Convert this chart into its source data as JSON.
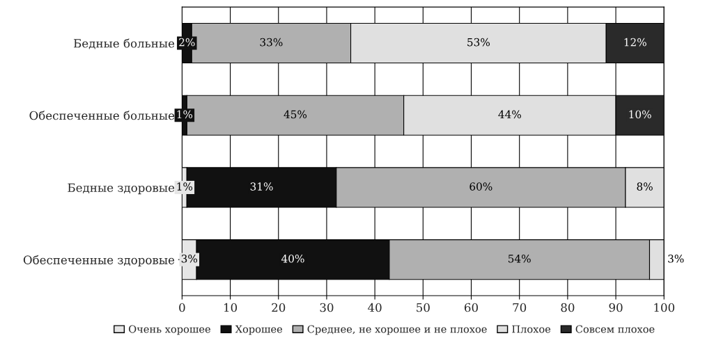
{
  "chart_data": {
    "type": "bar",
    "orientation": "horizontal",
    "stacked": true,
    "categories": [
      "Бедные больные",
      "Обеспеченные больные",
      "Бедные здоровые",
      "Обеспеченные здоровые"
    ],
    "series": [
      {
        "name": "Очень хорошее",
        "color": "#e6e6e6",
        "values": [
          0,
          0,
          1,
          3
        ],
        "value_labels": [
          null,
          null,
          "1%",
          "3%"
        ]
      },
      {
        "name": "Хорошее",
        "color": "#111111",
        "values": [
          2,
          1,
          31,
          40
        ],
        "value_labels": [
          "2%",
          "1%",
          "31%",
          "40%"
        ]
      },
      {
        "name": "Среднее, не хорошее и не плохое",
        "color": "#b0b0b0",
        "values": [
          33,
          45,
          60,
          54
        ],
        "value_labels": [
          "33%",
          "45%",
          "60%",
          "54%"
        ]
      },
      {
        "name": "Плохое",
        "color": "#e0e0e0",
        "values": [
          53,
          44,
          8,
          3
        ],
        "value_labels": [
          "53%",
          "44%",
          "8%",
          "3%"
        ]
      },
      {
        "name": "Совсем плохое",
        "color": "#2a2a2a",
        "values": [
          12,
          10,
          0,
          0
        ],
        "value_labels": [
          "12%",
          "10%",
          null,
          null
        ]
      }
    ],
    "xlim": [
      0,
      100
    ],
    "xticks": [
      0,
      10,
      20,
      30,
      40,
      50,
      60,
      70,
      80,
      90,
      100
    ],
    "grid": "x",
    "legend": "bottom"
  }
}
